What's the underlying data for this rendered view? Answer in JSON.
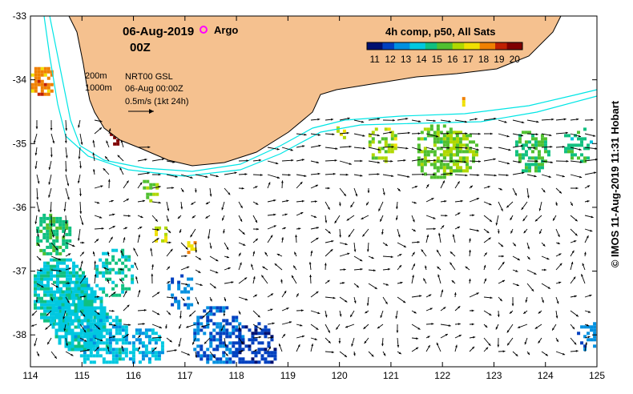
{
  "map": {
    "date": "06-Aug-2019",
    "time": "00Z",
    "argo_label": "Argo",
    "composite_title": "4h comp, p50, All Sats",
    "colorbar_ticks": [
      "11",
      "12",
      "13",
      "14",
      "15",
      "16",
      "17",
      "18",
      "19",
      "20"
    ],
    "contour_legend": [
      "200m",
      "1000m"
    ],
    "product_label": "NRT00 GSL",
    "product_time": "06-Aug 00:00Z",
    "scale_label": "0.5m/s (1kt 24h)",
    "copyright": "© IMOS 11-Aug-2019 11:31 Hobart",
    "lon_ticks": [
      "114",
      "115",
      "116",
      "117",
      "118",
      "119",
      "120",
      "121",
      "122",
      "123",
      "124",
      "125"
    ],
    "lat_ticks": [
      "-33",
      "-34",
      "-35",
      "-36",
      "-37",
      "-38"
    ],
    "lon_range": [
      114,
      125
    ],
    "lat_range": [
      -38.5,
      -33
    ],
    "colorbar_range": [
      10.5,
      20.5
    ],
    "land_color": "#f5c18f",
    "argo_color": "#ff00ff",
    "contour_color": "#00e5e5",
    "sst_palette": [
      "#001070",
      "#0040c0",
      "#0090e0",
      "#00c8e0",
      "#10c080",
      "#50c030",
      "#b0d800",
      "#f0e000",
      "#f08000",
      "#c02000",
      "#800000"
    ]
  }
}
